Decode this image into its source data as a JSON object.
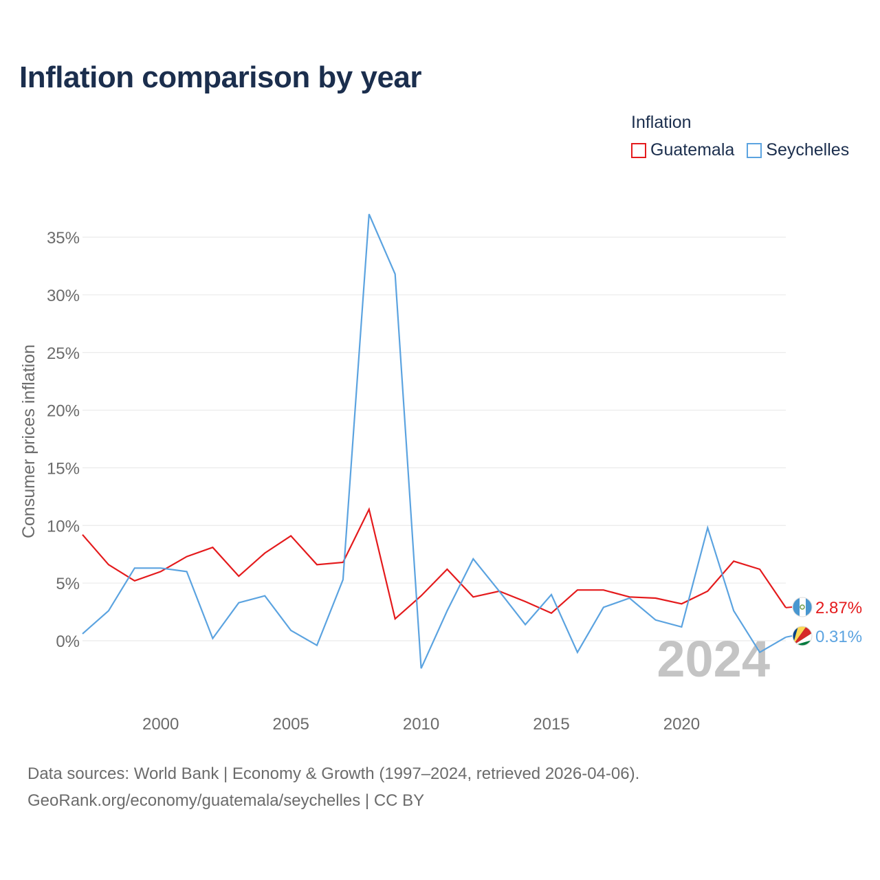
{
  "title": "Inflation comparison by year",
  "legend": {
    "title": "Inflation",
    "items": [
      {
        "name": "Guatemala",
        "color": "#e41a1c"
      },
      {
        "name": "Seychelles",
        "color": "#5ba3e0"
      }
    ]
  },
  "year_watermark": "2024",
  "source": {
    "line1": "Data sources: World Bank | Economy & Growth (1997–2024, retrieved 2026-04-06).",
    "line2": "GeoRank.org/economy/guatemala/seychelles | CC BY"
  },
  "chart_data": {
    "type": "line",
    "title": "Inflation comparison by year",
    "xlabel": "",
    "ylabel": "Consumer prices inflation",
    "xlim": [
      1997,
      2024
    ],
    "ylim": [
      -5,
      37
    ],
    "x_ticks": [
      2000,
      2005,
      2010,
      2015,
      2020
    ],
    "y_ticks": [
      0,
      5,
      10,
      15,
      20,
      25,
      30,
      35
    ],
    "y_tick_labels": [
      "0%",
      "5%",
      "10%",
      "15%",
      "20%",
      "25%",
      "30%",
      "35%"
    ],
    "x": [
      1997,
      1998,
      1999,
      2000,
      2001,
      2002,
      2003,
      2004,
      2005,
      2006,
      2007,
      2008,
      2009,
      2010,
      2011,
      2012,
      2013,
      2014,
      2015,
      2016,
      2017,
      2018,
      2019,
      2020,
      2021,
      2022,
      2023,
      2024
    ],
    "series": [
      {
        "name": "Guatemala",
        "color": "#e41a1c",
        "end_label": "2.87%",
        "values": [
          9.2,
          6.6,
          5.2,
          6.0,
          7.3,
          8.1,
          5.6,
          7.6,
          9.1,
          6.6,
          6.8,
          11.4,
          1.9,
          3.9,
          6.2,
          3.8,
          4.3,
          3.4,
          2.4,
          4.4,
          4.4,
          3.8,
          3.7,
          3.2,
          4.3,
          6.9,
          6.2,
          2.87
        ]
      },
      {
        "name": "Seychelles",
        "color": "#5ba3e0",
        "end_label": "0.31%",
        "values": [
          0.6,
          2.6,
          6.3,
          6.3,
          6.0,
          0.2,
          3.3,
          3.9,
          0.9,
          -0.4,
          5.3,
          37.0,
          31.8,
          -2.4,
          2.6,
          7.1,
          4.3,
          1.4,
          4.0,
          -1.0,
          2.9,
          3.7,
          1.8,
          1.2,
          9.8,
          2.6,
          -1.0,
          0.31
        ]
      }
    ]
  }
}
